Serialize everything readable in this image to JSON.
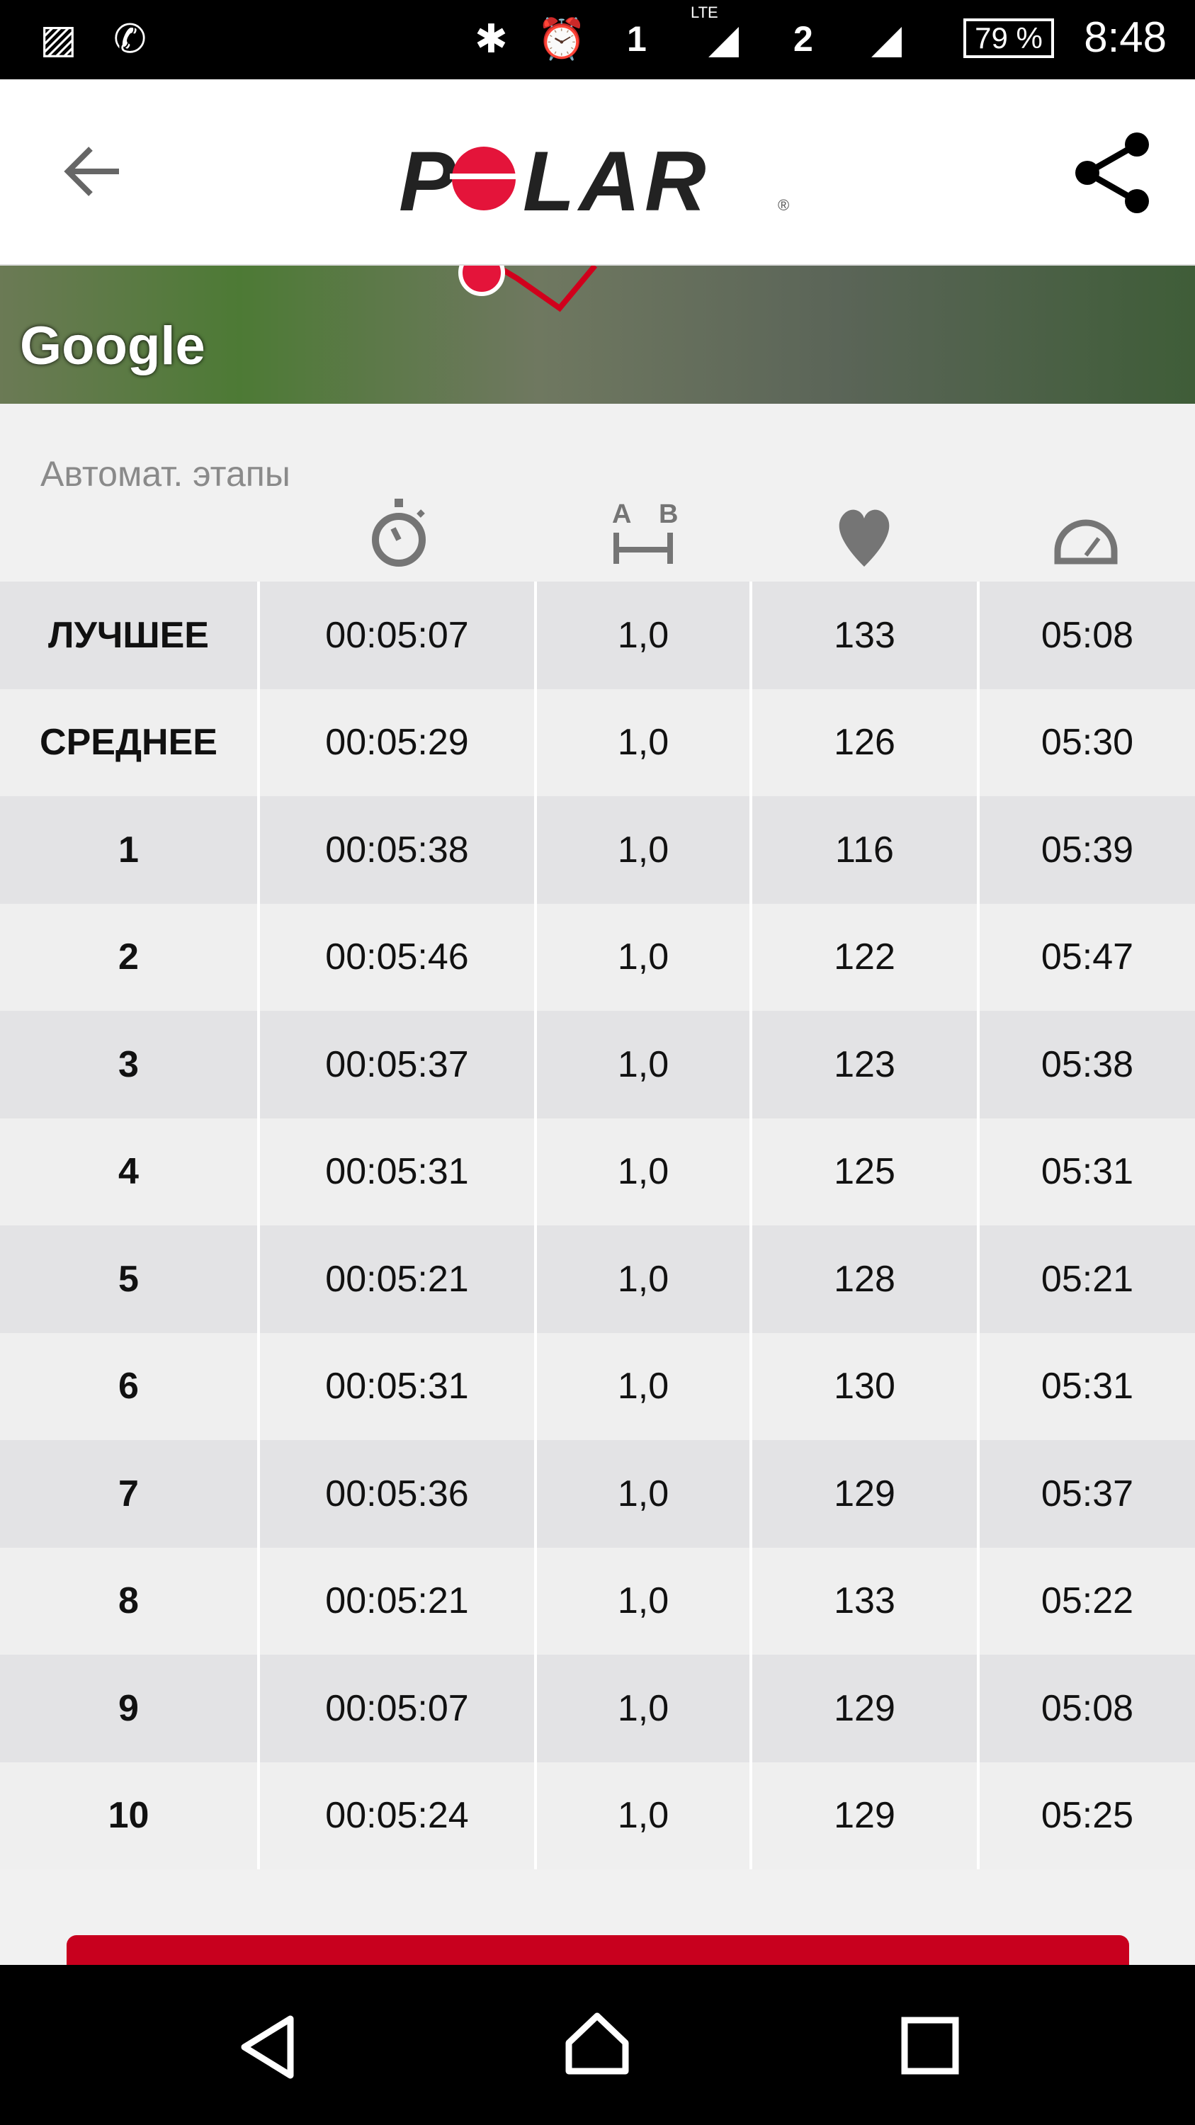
{
  "status_bar": {
    "time": "8:48",
    "battery": "79 %",
    "sim1": "1",
    "sim2": "2",
    "network": "LTE",
    "icons": [
      "image-icon",
      "phone-icon",
      "bluetooth-icon",
      "alarm-icon",
      "signal-icon",
      "battery-icon"
    ]
  },
  "header": {
    "logo": "POLAR",
    "back_icon": "arrow-left-icon",
    "share_icon": "share-icon"
  },
  "map": {
    "attribution": "Google"
  },
  "laps": {
    "title": "Автомат. этапы",
    "column_icons": [
      "stopwatch-icon",
      "distance-ab-icon",
      "heart-icon",
      "speedometer-icon"
    ],
    "distance_icon_labels": [
      "A",
      "B"
    ],
    "rows": [
      [
        "ЛУЧШЕЕ",
        "00:05:07",
        "1,0",
        "133",
        "05:08"
      ],
      [
        "СРЕДНЕЕ",
        "00:05:29",
        "1,0",
        "126",
        "05:30"
      ],
      [
        "1",
        "00:05:38",
        "1,0",
        "116",
        "05:39"
      ],
      [
        "2",
        "00:05:46",
        "1,0",
        "122",
        "05:47"
      ],
      [
        "3",
        "00:05:37",
        "1,0",
        "123",
        "05:38"
      ],
      [
        "4",
        "00:05:31",
        "1,0",
        "125",
        "05:31"
      ],
      [
        "5",
        "00:05:21",
        "1,0",
        "128",
        "05:21"
      ],
      [
        "6",
        "00:05:31",
        "1,0",
        "130",
        "05:31"
      ],
      [
        "7",
        "00:05:36",
        "1,0",
        "129",
        "05:37"
      ],
      [
        "8",
        "00:05:21",
        "1,0",
        "133",
        "05:22"
      ],
      [
        "9",
        "00:05:07",
        "1,0",
        "129",
        "05:08"
      ],
      [
        "10",
        "00:05:24",
        "1,0",
        "129",
        "05:25"
      ]
    ]
  },
  "colors": {
    "brand_red": "#c8001e",
    "logo_red": "#e4143a"
  }
}
